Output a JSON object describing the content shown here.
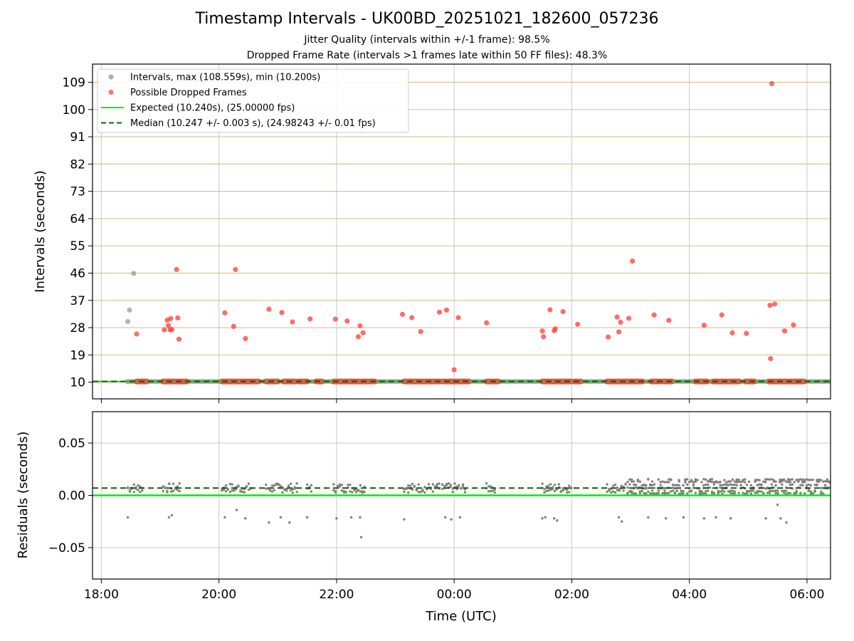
{
  "titles": {
    "main": "Timestamp Intervals - UK00BD_20251021_182600_057236",
    "sub1": "Jitter Quality (intervals within +/-1 frame): 98.5%",
    "sub2": "Dropped Frame Rate (intervals >1 frames late within 50 FF files): 48.3%"
  },
  "colors": {
    "interval": "#8c8c8c",
    "dropped": "#ff3b3b",
    "expected": "#00ee00",
    "median": "#006400",
    "hgrid_top": "#d6c690",
    "grid": "#c8c8c8",
    "residual": "#808080"
  },
  "chart_data": [
    {
      "type": "scatter",
      "panel": "intervals",
      "xlabel": "",
      "ylabel": "Intervals (seconds)",
      "xlim": [
        -0.15,
        12.4
      ],
      "ylim": [
        4.5,
        115
      ],
      "yticks": [
        10,
        19,
        28,
        37,
        46,
        55,
        64,
        73,
        82,
        91,
        100,
        109
      ],
      "ytick_labels": [
        "10",
        "19",
        "28",
        "37",
        "46",
        "55",
        "64",
        "73",
        "82",
        "91",
        "100",
        "109"
      ],
      "grid": true,
      "legend": {
        "position": "top-left",
        "entries": [
          {
            "label": "Intervals, max (108.559s), min (10.200s)",
            "kind": "marker",
            "color": "#8c8c8c"
          },
          {
            "label": "Possible Dropped Frames",
            "kind": "marker",
            "color": "#ff3b3b"
          },
          {
            "label": "Expected (10.240s), (25.00000 fps)",
            "kind": "line",
            "color": "#00ee00"
          },
          {
            "label": "Median (10.247 +/- 0.003 s), (24.98243 +/- 0.01 fps)",
            "kind": "dashed",
            "color": "#006400"
          }
        ]
      },
      "expected": 10.24,
      "median": 10.247,
      "series": [
        {
          "name": "Intervals",
          "color": "#8c8c8c",
          "x": [
            0.45,
            0.48,
            0.55
          ],
          "y": [
            30.0,
            33.8,
            45.9
          ],
          "baseline_ranges": [
            [
              0.42,
              12.4
            ]
          ],
          "baseline_value": 10.24
        },
        {
          "name": "Possible Dropped Frames",
          "color": "#ff3b3b",
          "x": [
            0.6,
            1.07,
            1.12,
            1.14,
            1.17,
            1.18,
            1.2,
            1.28,
            1.3,
            1.32,
            2.1,
            2.25,
            2.28,
            2.45,
            2.85,
            3.07,
            3.25,
            3.55,
            3.98,
            4.18,
            4.37,
            4.4,
            4.45,
            5.12,
            5.28,
            5.43,
            5.75,
            5.87,
            6.0,
            6.07,
            6.55,
            7.5,
            7.52,
            7.63,
            7.7,
            7.72,
            7.85,
            8.1,
            8.62,
            8.77,
            8.8,
            8.83,
            8.97,
            9.03,
            9.4,
            9.65,
            10.25,
            10.55,
            10.73,
            10.97,
            11.37,
            11.38,
            11.45,
            11.62,
            11.77
          ],
          "y": [
            25.9,
            27.3,
            30.5,
            28.7,
            27.3,
            31.0,
            27.4,
            47.2,
            31.2,
            24.2,
            32.9,
            28.4,
            47.2,
            24.4,
            34.1,
            33.0,
            29.9,
            30.9,
            30.8,
            30.2,
            25.0,
            28.6,
            26.3,
            32.4,
            31.3,
            26.7,
            33.1,
            33.8,
            14.1,
            31.3,
            29.6,
            26.9,
            25.0,
            33.9,
            27.0,
            27.6,
            33.3,
            29.1,
            24.9,
            31.5,
            26.6,
            29.8,
            31.1,
            50.0,
            32.2,
            30.4,
            28.8,
            32.2,
            26.3,
            26.1,
            35.4,
            17.8,
            35.8,
            26.9,
            28.9
          ],
          "baseline_ranges": [
            [
              0.6,
              0.77
            ],
            [
              1.05,
              1.45
            ],
            [
              2.05,
              2.67
            ],
            [
              2.8,
              3.0
            ],
            [
              3.1,
              3.3
            ],
            [
              3.35,
              3.5
            ],
            [
              3.65,
              3.75
            ],
            [
              3.95,
              4.65
            ],
            [
              5.15,
              5.75
            ],
            [
              5.8,
              6.25
            ],
            [
              6.55,
              6.75
            ],
            [
              7.5,
              8.0
            ],
            [
              8.05,
              8.15
            ],
            [
              8.6,
              9.2
            ],
            [
              9.35,
              9.5
            ],
            [
              9.55,
              9.7
            ],
            [
              10.1,
              10.3
            ],
            [
              10.4,
              10.85
            ],
            [
              10.95,
              11.1
            ],
            [
              11.35,
              11.95
            ]
          ],
          "baseline_value": 10.24
        },
        {
          "name": "Outlier",
          "color": "#ff3b3b",
          "x": [
            11.4
          ],
          "y": [
            108.559
          ]
        }
      ]
    },
    {
      "type": "scatter",
      "panel": "residuals",
      "xlabel": "Time (UTC)",
      "ylabel": "Residuals (seconds)",
      "xlim": [
        -0.15,
        12.4
      ],
      "ylim": [
        -0.08,
        0.08
      ],
      "xticks": [
        0,
        2,
        4,
        6,
        8,
        10,
        12
      ],
      "xtick_labels": [
        "18:00",
        "20:00",
        "22:00",
        "00:00",
        "02:00",
        "04:00",
        "06:00"
      ],
      "yticks": [
        -0.05,
        0.0,
        0.05
      ],
      "ytick_labels": [
        "−0.05",
        "0.00",
        "0.05"
      ],
      "grid": true,
      "expected": 0.0,
      "median": 0.007,
      "series": [
        {
          "name": "Residuals",
          "color": "#808080",
          "clusters": [
            [
              0.45,
              0.7
            ],
            [
              1.05,
              1.35
            ],
            [
              2.05,
              2.55
            ],
            [
              2.8,
              3.35
            ],
            [
              3.5,
              3.6
            ],
            [
              3.95,
              4.5
            ],
            [
              5.15,
              5.75
            ],
            [
              5.8,
              6.2
            ],
            [
              6.55,
              6.7
            ],
            [
              7.5,
              8.0
            ],
            [
              8.6,
              12.4
            ]
          ],
          "dense_from": 8.95,
          "outliers_x": [
            0.45,
            1.15,
            1.2,
            2.1,
            2.3,
            2.45,
            2.85,
            3.05,
            3.2,
            3.5,
            4.0,
            4.25,
            4.4,
            4.42,
            5.15,
            5.85,
            5.95,
            6.1,
            7.5,
            7.55,
            7.7,
            7.75,
            8.8,
            8.85,
            9.3,
            9.6,
            9.9,
            10.25,
            10.45,
            10.7,
            11.3,
            11.5,
            11.55,
            11.65
          ],
          "outliers_y": [
            -0.021,
            -0.021,
            -0.019,
            -0.021,
            -0.014,
            -0.022,
            -0.026,
            -0.021,
            -0.026,
            -0.021,
            -0.022,
            -0.021,
            -0.021,
            -0.04,
            -0.023,
            -0.021,
            -0.023,
            -0.021,
            -0.022,
            -0.021,
            -0.022,
            -0.024,
            -0.021,
            -0.025,
            -0.021,
            -0.022,
            -0.021,
            -0.022,
            -0.021,
            -0.022,
            -0.022,
            -0.009,
            -0.022,
            -0.026
          ]
        }
      ]
    }
  ]
}
